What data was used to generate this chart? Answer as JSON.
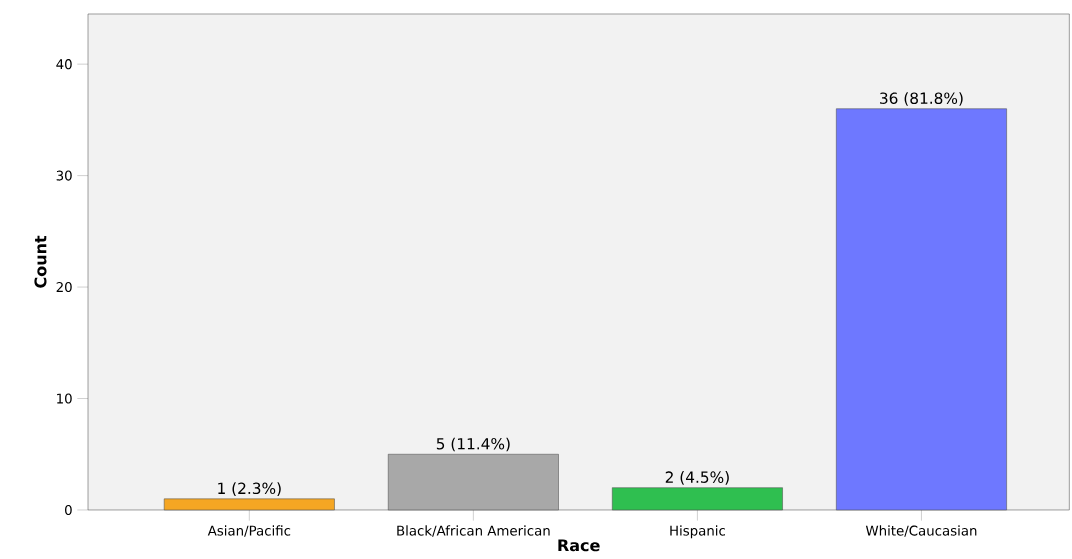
{
  "chart_data": {
    "type": "bar",
    "xlabel": "Race",
    "ylabel": "Count",
    "categories": [
      "Asian/Pacific",
      "Black/African American",
      "Hispanic",
      "White/Caucasian"
    ],
    "values": [
      1,
      5,
      2,
      36
    ],
    "colors": [
      "#f5a623",
      "#a8a8a8",
      "#2fbf50",
      "#6e78ff"
    ],
    "value_labels": [
      "1 (2.3%)",
      "5 (11.4%)",
      "2 (4.5%)",
      "36 (81.8%)"
    ],
    "ylim": [
      0,
      44.5
    ],
    "yticks": [
      0,
      10,
      20,
      30,
      40
    ]
  }
}
